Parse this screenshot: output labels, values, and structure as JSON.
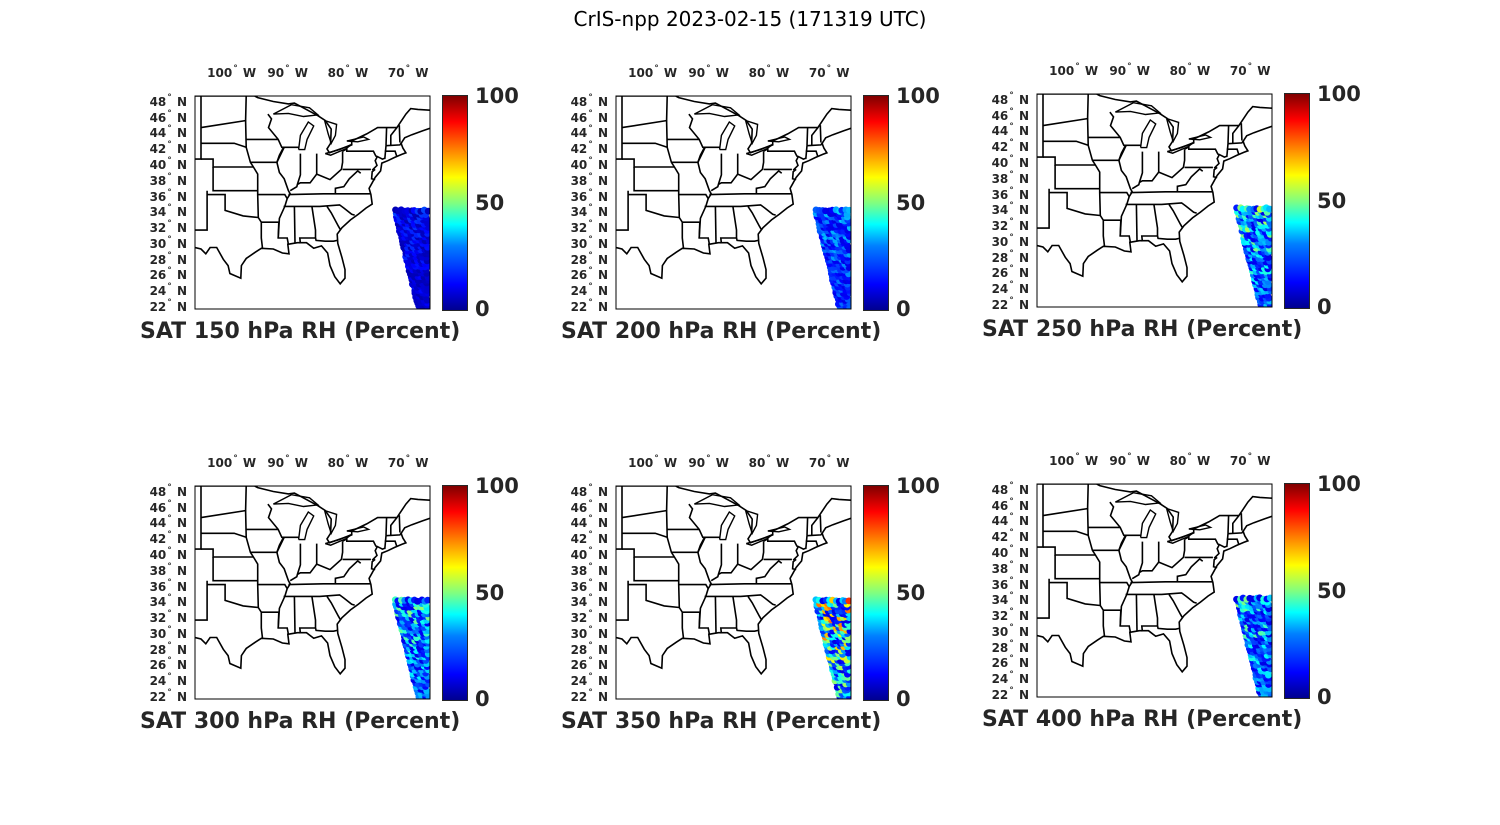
{
  "title": "CrIS-npp 2023-02-15 (171319 UTC)",
  "lon_ticks": [
    {
      "deg": "100",
      "hemi": "W"
    },
    {
      "deg": "90",
      "hemi": "W"
    },
    {
      "deg": "80",
      "hemi": "W"
    },
    {
      "deg": "70",
      "hemi": "W"
    }
  ],
  "lat_ticks": [
    {
      "deg": "48",
      "hemi": "N"
    },
    {
      "deg": "46",
      "hemi": "N"
    },
    {
      "deg": "44",
      "hemi": "N"
    },
    {
      "deg": "42",
      "hemi": "N"
    },
    {
      "deg": "40",
      "hemi": "N"
    },
    {
      "deg": "38",
      "hemi": "N"
    },
    {
      "deg": "36",
      "hemi": "N"
    },
    {
      "deg": "34",
      "hemi": "N"
    },
    {
      "deg": "32",
      "hemi": "N"
    },
    {
      "deg": "30",
      "hemi": "N"
    },
    {
      "deg": "28",
      "hemi": "N"
    },
    {
      "deg": "26",
      "hemi": "N"
    },
    {
      "deg": "24",
      "hemi": "N"
    },
    {
      "deg": "22",
      "hemi": "N"
    }
  ],
  "colorbar": {
    "ticks": [
      "0",
      "50",
      "100"
    ],
    "colormap": "jet",
    "range": [
      0,
      100
    ]
  },
  "panels": [
    {
      "title": "SAT 150 hPa RH (Percent)",
      "level_hpa": 150,
      "swath_rh_range": [
        5,
        20
      ]
    },
    {
      "title": "SAT 200 hPa RH (Percent)",
      "level_hpa": 200,
      "swath_rh_range": [
        10,
        35
      ]
    },
    {
      "title": "SAT 250 hPa RH (Percent)",
      "level_hpa": 250,
      "swath_rh_range": [
        10,
        60
      ]
    },
    {
      "title": "SAT 300 hPa RH (Percent)",
      "level_hpa": 300,
      "swath_rh_range": [
        10,
        55
      ]
    },
    {
      "title": "SAT 350 hPa RH (Percent)",
      "level_hpa": 350,
      "swath_rh_range": [
        10,
        90
      ]
    },
    {
      "title": "SAT 400 hPa RH (Percent)",
      "level_hpa": 400,
      "swath_rh_range": [
        10,
        55
      ]
    }
  ]
}
